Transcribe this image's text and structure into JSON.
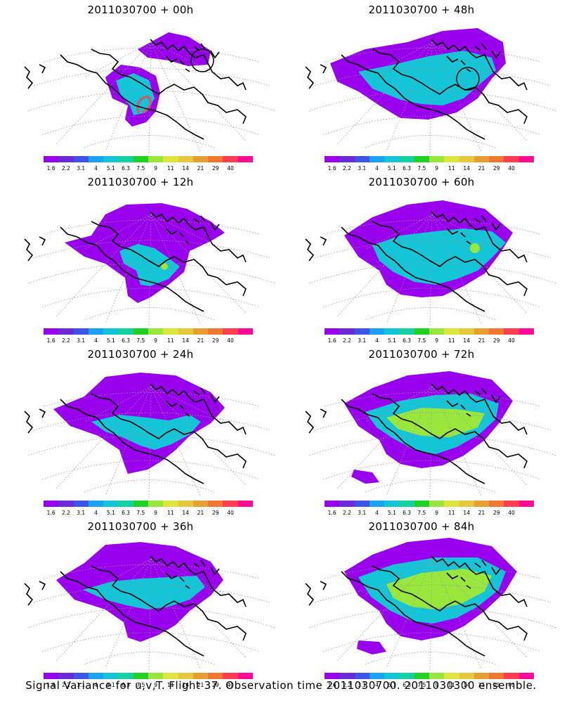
{
  "panels": [
    {
      "title": "2011030700 + 00h",
      "lead_hours": 0
    },
    {
      "title": "2011030700 + 48h",
      "lead_hours": 48
    },
    {
      "title": "2011030700 + 12h",
      "lead_hours": 12
    },
    {
      "title": "2011030700 + 60h",
      "lead_hours": 60
    },
    {
      "title": "2011030700 + 24h",
      "lead_hours": 24
    },
    {
      "title": "2011030700 + 72h",
      "lead_hours": 72
    },
    {
      "title": "2011030700 + 36h",
      "lead_hours": 36
    },
    {
      "title": "2011030700 + 84h",
      "lead_hours": 84
    }
  ],
  "colorbar": {
    "labels": [
      "1.6",
      "2.2",
      "3.1",
      "4",
      "5.1",
      "6.3",
      "7.5",
      "9",
      "11",
      "14",
      "21",
      "29",
      "40"
    ],
    "colors": [
      "#9900ee",
      "#6a2bd6",
      "#3a55e8",
      "#1aa3f5",
      "#14c5d8",
      "#14d2a0",
      "#22d222",
      "#99e63c",
      "#dde63c",
      "#e6c83c",
      "#e6a032",
      "#f07830",
      "#ff3c50",
      "#ff0a96"
    ]
  },
  "footer": "Signal Variance for u,v,T. Flight 37. Observation time 2011030700. 2011030300 ensemble."
}
